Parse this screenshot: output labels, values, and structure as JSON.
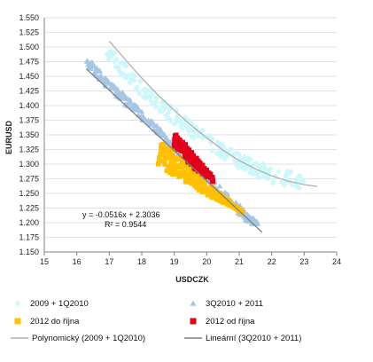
{
  "chart_data": {
    "type": "scatter",
    "title": "",
    "xlabel": "USDCZK",
    "ylabel": "EURUSD",
    "xlim": [
      15,
      24
    ],
    "ylim": [
      1.15,
      1.55
    ],
    "x_ticks": [
      "15",
      "16",
      "17",
      "18",
      "19",
      "20",
      "21",
      "22",
      "23",
      "24"
    ],
    "y_ticks": [
      "1.150",
      "1.175",
      "1.200",
      "1.225",
      "1.250",
      "1.275",
      "1.300",
      "1.325",
      "1.350",
      "1.375",
      "1.400",
      "1.425",
      "1.450",
      "1.475",
      "1.500",
      "1.525",
      "1.550"
    ],
    "grid": "horizontal",
    "legend_position": "bottom",
    "series": [
      {
        "name": "2009 + 1Q2010",
        "marker": "diamond",
        "color": "#ccf7fb",
        "bands": [
          {
            "x": [
              16.8,
              17.5,
              18.2,
              19.0,
              19.8,
              20.6,
              21.4,
              22.2,
              23.0
            ],
            "y": [
              1.513,
              1.47,
              1.43,
              1.395,
              1.362,
              1.33,
              1.308,
              1.292,
              1.285
            ]
          },
          {
            "x": [
              16.9,
              17.6,
              18.3,
              19.1,
              19.9,
              20.7,
              21.5,
              22.3,
              23.0
            ],
            "y": [
              1.48,
              1.438,
              1.4,
              1.364,
              1.332,
              1.302,
              1.278,
              1.262,
              1.257
            ]
          }
        ]
      },
      {
        "name": "3Q2010 + 2011",
        "marker": "triangle",
        "color": "#a6c6e6",
        "bands": [
          {
            "x": [
              16.2,
              16.8,
              17.5,
              18.2,
              19.0,
              19.8,
              20.6,
              21.3,
              21.7
            ],
            "y": [
              1.492,
              1.455,
              1.418,
              1.382,
              1.338,
              1.296,
              1.252,
              1.215,
              1.195
            ]
          },
          {
            "x": [
              16.3,
              16.9,
              17.6,
              18.3,
              19.1,
              19.9,
              20.6,
              21.2,
              21.6
            ],
            "y": [
              1.468,
              1.432,
              1.396,
              1.36,
              1.318,
              1.276,
              1.236,
              1.204,
              1.188
            ]
          }
        ]
      },
      {
        "name": "2012 do října",
        "marker": "square",
        "color": "#ffc000",
        "bands": [
          {
            "x": [
              18.4,
              18.8,
              19.2,
              19.6,
              20.0,
              20.4,
              20.8,
              21.1
            ],
            "y": [
              1.343,
              1.332,
              1.312,
              1.292,
              1.268,
              1.25,
              1.232,
              1.218
            ]
          },
          {
            "x": [
              18.5,
              18.9,
              19.3,
              19.7,
              20.1,
              20.5,
              20.9,
              21.2
            ],
            "y": [
              1.3,
              1.284,
              1.272,
              1.258,
              1.245,
              1.235,
              1.224,
              1.213
            ]
          }
        ]
      },
      {
        "name": "2012 od října",
        "marker": "square",
        "color": "#e3001b",
        "bands": [
          {
            "x": [
              18.9,
              19.1,
              19.3,
              19.5,
              19.8,
              20.0,
              20.2
            ],
            "y": [
              1.357,
              1.348,
              1.338,
              1.322,
              1.304,
              1.29,
              1.278
            ]
          },
          {
            "x": [
              19.0,
              19.2,
              19.4,
              19.6,
              19.9,
              20.1,
              20.3
            ],
            "y": [
              1.33,
              1.318,
              1.305,
              1.293,
              1.282,
              1.273,
              1.266
            ]
          }
        ]
      }
    ],
    "trendlines": [
      {
        "name": "Polynomický (2009 + 1Q2010)",
        "type": "polynomial",
        "color": "#b0b0b0",
        "x": [
          17.0,
          17.5,
          18.0,
          18.5,
          19.0,
          19.5,
          20.0,
          20.5,
          21.0,
          21.5,
          22.0,
          22.5,
          23.0,
          23.4
        ],
        "y": [
          1.51,
          1.478,
          1.447,
          1.418,
          1.392,
          1.367,
          1.345,
          1.324,
          1.306,
          1.292,
          1.28,
          1.271,
          1.265,
          1.262
        ]
      },
      {
        "name": "Lineární (3Q2010 + 2011)",
        "type": "linear",
        "color": "#7f7f7f",
        "slope": -0.0516,
        "intercept": 2.3036,
        "x": [
          16.3,
          21.7
        ],
        "y": [
          1.4625,
          1.184
        ]
      }
    ],
    "annotations": [
      "y = -0.0516x + 2.3036",
      "R² = 0.9544"
    ]
  }
}
